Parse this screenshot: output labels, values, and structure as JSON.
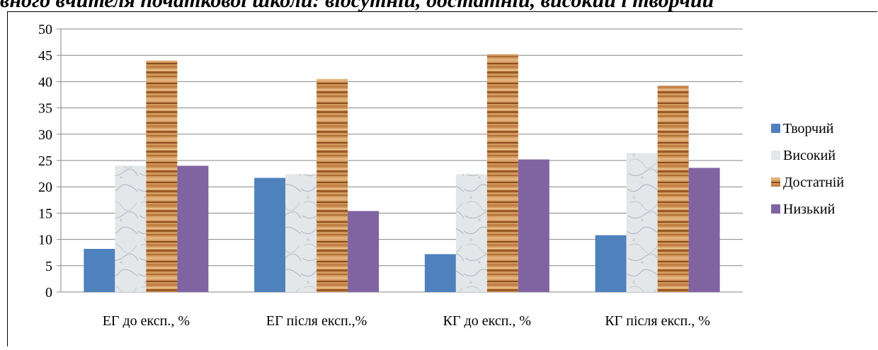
{
  "header": {
    "partial_text": "вного вчителя початкової школи: відсутній, достатній, високий і творчий"
  },
  "chart_data": {
    "type": "bar",
    "categories": [
      "ЕГ до експ., %",
      "ЕГ після експ.,%",
      "КГ до експ., %",
      "КГ після експ., %"
    ],
    "series": [
      {
        "name": "Творчий",
        "values": [
          8.2,
          21.7,
          7.2,
          10.8
        ],
        "color": "#4f81bd",
        "fill": "solid"
      },
      {
        "name": "Високий",
        "values": [
          24.0,
          22.4,
          22.4,
          26.4
        ],
        "color": "#dfe3e6",
        "fill": "marble"
      },
      {
        "name": "Достатній",
        "values": [
          44.0,
          40.5,
          45.2,
          39.2
        ],
        "color": "#c8884a",
        "fill": "wood"
      },
      {
        "name": "Низький",
        "values": [
          24.0,
          15.4,
          25.2,
          23.6
        ],
        "color": "#8064a2",
        "fill": "solid"
      }
    ],
    "yticks": [
      "0",
      "5",
      "10",
      "15",
      "20",
      "25",
      "30",
      "35",
      "40",
      "45",
      "50"
    ],
    "ylim": [
      0,
      50
    ],
    "grid": true,
    "legend_position": "right"
  }
}
